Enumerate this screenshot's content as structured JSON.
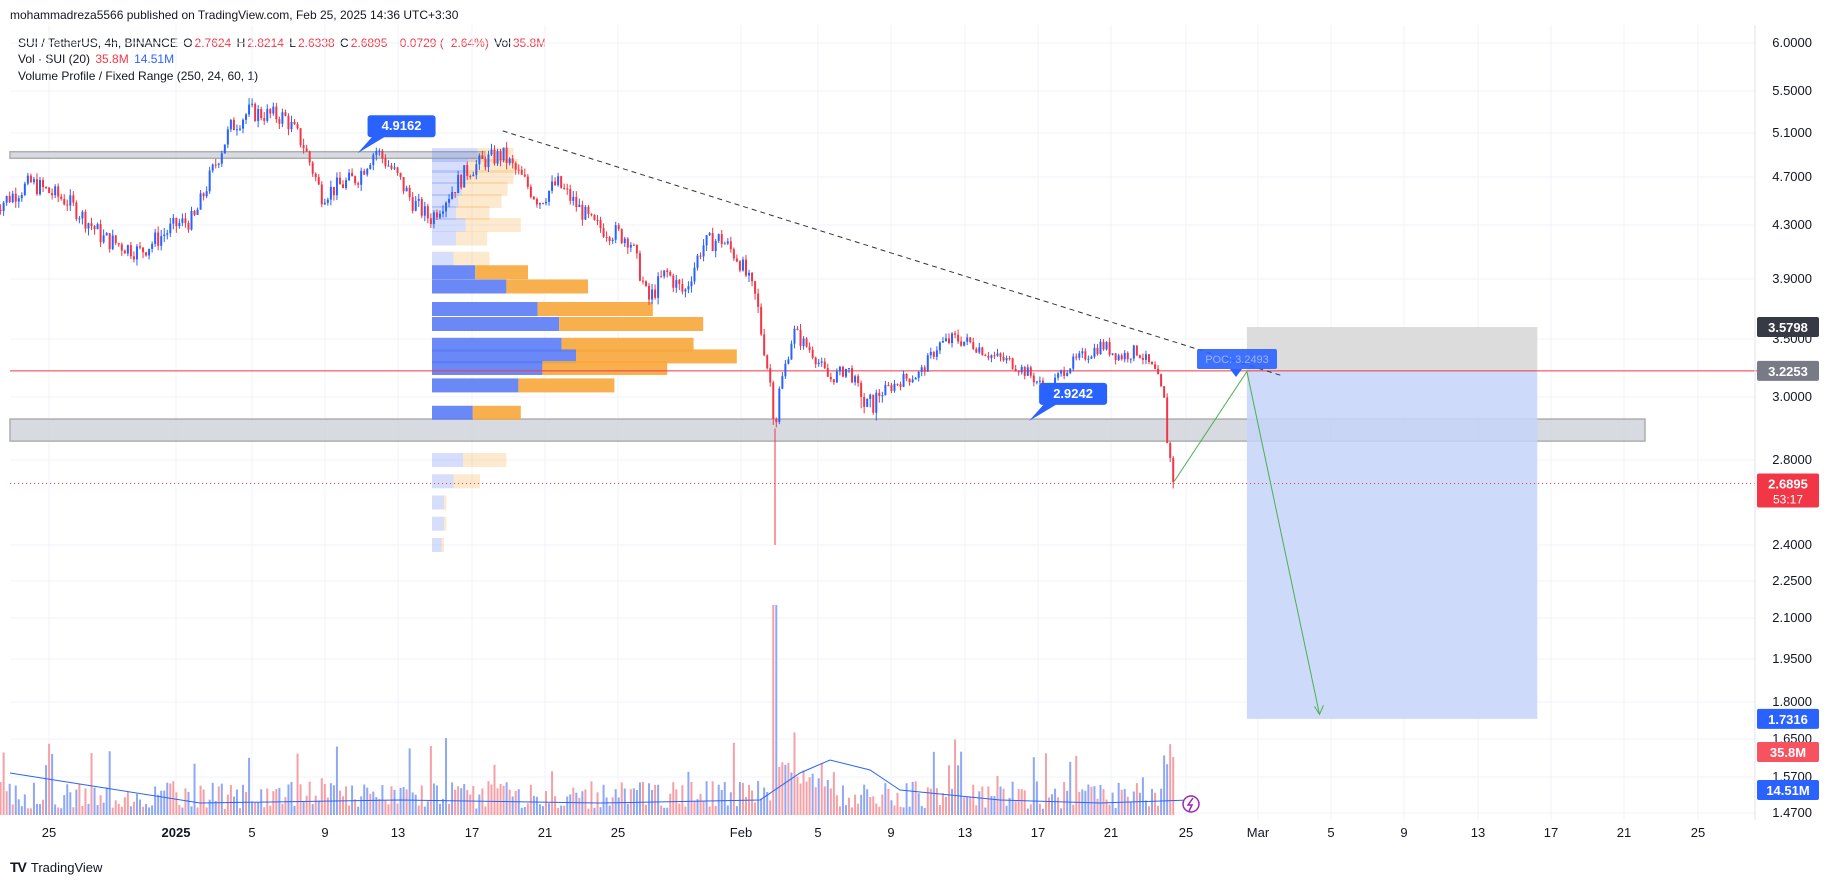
{
  "header": {
    "published_by": "mohammadreza5566 published on TradingView.com, Feb 25, 2025 14:36 UTC+3:30",
    "symbol_line": "SUI / TetherUS, 4h, BINANCE",
    "o_label": "O",
    "o_value": "2.7624",
    "h_label": "H",
    "h_value": "2.8214",
    "l_label": "L",
    "l_value": "2.6338",
    "c_label": "C",
    "c_value": "2.6895",
    "change": "−0.0729 (−2.64%)",
    "vol_label": "Vol",
    "vol_value": "35.8M",
    "vol_ind_label": "Vol · SUI (20)",
    "vol_ind_v1": "35.8M",
    "vol_ind_v2": "14.51M",
    "vp_label": "Volume Profile / Fixed Range (250, 24, 60, 1)"
  },
  "footer": {
    "brand": "TradingView",
    "logo": "TV"
  },
  "colors": {
    "up": "#2962ff",
    "down": "#f23645",
    "vp_up": "#5b7cf5",
    "vp_down": "#f7a73c",
    "target_zone": "#c5d3f8",
    "stop_zone": "#d6d6d6",
    "grid": "#f0f3fa"
  },
  "chart_data": {
    "type": "candlestick",
    "symbol": "SUI / TetherUS",
    "interval": "4h",
    "exchange": "BINANCE",
    "y_axis_ticks": [
      "6.0000",
      "5.5000",
      "5.1000",
      "4.7000",
      "4.3000",
      "3.9000",
      "3.5000",
      "3.0000",
      "2.8000",
      "2.4000",
      "2.2500",
      "2.1000",
      "1.9500",
      "1.8000",
      "1.6500",
      "1.5700",
      "1.4700"
    ],
    "y_axis_tick_values": [
      6.0,
      5.5,
      5.1,
      4.7,
      4.3,
      3.9,
      3.5,
      3.0,
      2.8,
      2.4,
      2.25,
      2.1,
      1.95,
      1.8,
      1.65,
      1.57,
      1.47
    ],
    "x_axis_ticks": [
      "25",
      "2025",
      "5",
      "9",
      "13",
      "17",
      "21",
      "25",
      "Feb",
      "5",
      "9",
      "13",
      "17",
      "21",
      "25",
      "Mar",
      "5",
      "9",
      "13",
      "17",
      "21",
      "25"
    ],
    "price_path": [
      [
        "2024-12-22",
        4.45
      ],
      [
        "2024-12-24",
        4.65
      ],
      [
        "2024-12-26",
        4.5
      ],
      [
        "2024-12-28",
        4.2
      ],
      [
        "2024-12-30",
        4.1
      ],
      [
        "2025-01-01",
        4.3
      ],
      [
        "2025-01-02",
        4.35
      ],
      [
        "2025-01-04",
        5.15
      ],
      [
        "2025-01-05",
        5.3
      ],
      [
        "2025-01-07",
        5.25
      ],
      [
        "2025-01-08",
        5.0
      ],
      [
        "2025-01-09",
        4.55
      ],
      [
        "2025-01-11",
        4.7
      ],
      [
        "2025-01-12",
        4.95
      ],
      [
        "2025-01-13",
        4.75
      ],
      [
        "2025-01-14",
        4.5
      ],
      [
        "2025-01-15",
        4.35
      ],
      [
        "2025-01-17",
        4.75
      ],
      [
        "2025-01-18",
        4.85
      ],
      [
        "2025-01-19",
        4.9
      ],
      [
        "2025-01-21",
        4.5
      ],
      [
        "2025-01-22",
        4.65
      ],
      [
        "2025-01-24",
        4.3
      ],
      [
        "2025-01-26",
        4.2
      ],
      [
        "2025-01-27",
        3.75
      ],
      [
        "2025-01-28",
        3.95
      ],
      [
        "2025-01-29",
        3.8
      ],
      [
        "2025-01-30",
        4.15
      ],
      [
        "2025-01-31",
        4.2
      ],
      [
        "2025-02-01",
        4.05
      ],
      [
        "2025-02-02",
        3.75
      ],
      [
        "2025-02-03",
        2.9
      ],
      [
        "2025-02-04",
        3.55
      ],
      [
        "2025-02-05",
        3.4
      ],
      [
        "2025-02-06",
        3.15
      ],
      [
        "2025-02-07",
        3.25
      ],
      [
        "2025-02-08",
        2.95
      ],
      [
        "2025-02-09",
        3.05
      ],
      [
        "2025-02-10",
        3.15
      ],
      [
        "2025-02-11",
        3.2
      ],
      [
        "2025-02-12",
        3.45
      ],
      [
        "2025-02-13",
        3.5
      ],
      [
        "2025-02-14",
        3.45
      ],
      [
        "2025-02-15",
        3.35
      ],
      [
        "2025-02-16",
        3.3
      ],
      [
        "2025-02-17",
        3.2
      ],
      [
        "2025-02-18",
        3.05
      ],
      [
        "2025-02-19",
        3.25
      ],
      [
        "2025-02-20",
        3.35
      ],
      [
        "2025-02-21",
        3.45
      ],
      [
        "2025-02-22",
        3.35
      ],
      [
        "2025-02-23",
        3.4
      ],
      [
        "2025-02-24",
        3.2
      ],
      [
        "2025-02-24T16:00",
        2.85
      ],
      [
        "2025-02-25",
        2.6895
      ]
    ],
    "price_low_wick": {
      "date": "2025-02-03",
      "low": 2.4
    },
    "last_price": 2.6895,
    "countdown": "53:17",
    "price_labels": [
      {
        "value": 3.5798,
        "text": "3.5798",
        "color": "#363a45"
      },
      {
        "value": 3.2253,
        "text": "3.2253",
        "color": "#787b86"
      },
      {
        "value": 2.6895,
        "text": "2.6895",
        "color": "#f23645"
      },
      {
        "value": 1.7316,
        "text": "1.7316",
        "color": "#2962ff"
      }
    ],
    "volume_labels": [
      {
        "text": "35.8M",
        "color": "#f7525f"
      },
      {
        "text": "14.51M",
        "color": "#2962ff"
      }
    ],
    "volume_sma": 14.51,
    "volume_last": 35.8,
    "annotations": [
      {
        "type": "callout",
        "text": "4.9162",
        "date": "2025-01-11",
        "price": 4.9162
      },
      {
        "type": "callout",
        "text": "2.9242",
        "date": "2025-02-17",
        "price": 2.9242
      },
      {
        "type": "label",
        "text": "POC: 3.2493",
        "price": 3.2493
      },
      {
        "type": "hline",
        "price": 3.2253,
        "color": "#f23645"
      },
      {
        "type": "zone",
        "from": 4.87,
        "to": 4.93,
        "color": "#a0a0a0"
      },
      {
        "type": "zone",
        "from": 2.86,
        "to": 2.93,
        "color": "#a0a0a0"
      },
      {
        "type": "trendline",
        "from": [
          "2025-01-19",
          5.12
        ],
        "to": [
          "2025-03-03",
          3.18
        ],
        "style": "dashed"
      },
      {
        "type": "short_position",
        "entry": 3.2253,
        "stop": 3.5798,
        "target": 1.7316,
        "from": "2025-03-01",
        "to": "2025-03-17"
      },
      {
        "type": "arrow_path",
        "points": [
          [
            "2025-02-25",
            2.7
          ],
          [
            "2025-03-01",
            3.22
          ],
          [
            "2025-03-05",
            1.75
          ]
        ]
      }
    ],
    "volume_profile": [
      {
        "price": 4.9,
        "up": 38,
        "down": 30
      },
      {
        "price": 4.8,
        "up": 30,
        "down": 42
      },
      {
        "price": 4.7,
        "up": 28,
        "down": 40
      },
      {
        "price": 4.6,
        "up": 25,
        "down": 38
      },
      {
        "price": 4.5,
        "up": 22,
        "down": 36
      },
      {
        "price": 4.4,
        "up": 20,
        "down": 28
      },
      {
        "price": 4.3,
        "up": 28,
        "down": 46
      },
      {
        "price": 4.2,
        "up": 20,
        "down": 26
      },
      {
        "price": 4.05,
        "up": 18,
        "down": 30
      },
      {
        "price": 3.95,
        "up": 36,
        "down": 44
      },
      {
        "price": 3.85,
        "up": 62,
        "down": 68
      },
      {
        "price": 3.7,
        "up": 88,
        "down": 96
      },
      {
        "price": 3.6,
        "up": 106,
        "down": 120
      },
      {
        "price": 3.45,
        "up": 108,
        "down": 110
      },
      {
        "price": 3.35,
        "up": 120,
        "down": 134
      },
      {
        "price": 3.25,
        "up": 92,
        "down": 104
      },
      {
        "price": 3.1,
        "up": 72,
        "down": 80
      },
      {
        "price": 2.95,
        "up": 34,
        "down": 40
      },
      {
        "price": 2.8,
        "up": 26,
        "down": 36
      },
      {
        "price": 2.7,
        "up": 18,
        "down": 22
      },
      {
        "price": 2.6,
        "up": 10,
        "down": 2
      },
      {
        "price": 2.5,
        "up": 10,
        "down": 2
      },
      {
        "price": 2.4,
        "up": 8,
        "down": 2
      }
    ],
    "grid": true
  }
}
